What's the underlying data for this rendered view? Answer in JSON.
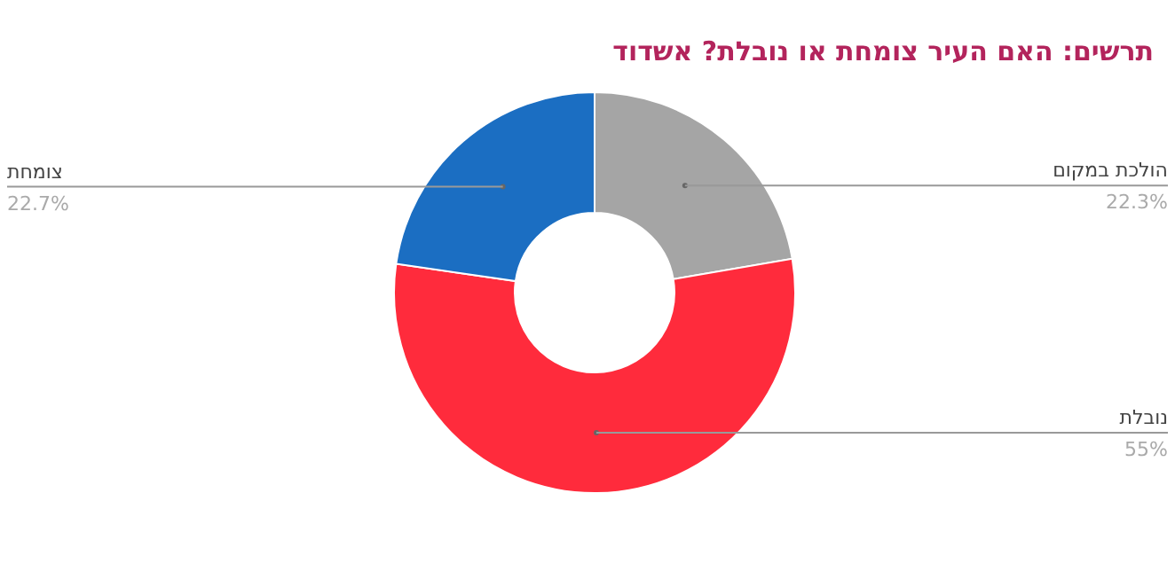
{
  "chart_data": {
    "type": "donut",
    "title": "תרשים: האם העיר צומחת או נובלת? אשדוד",
    "categories": [
      "הולכת במקום",
      "נובלת",
      "צומחת"
    ],
    "values": [
      22.3,
      55,
      22.7
    ],
    "colors": [
      "#a5a5a5",
      "#ff2b3c",
      "#1b6ec2"
    ],
    "value_labels": [
      "22.3%",
      "55%",
      "22.7%"
    ]
  }
}
